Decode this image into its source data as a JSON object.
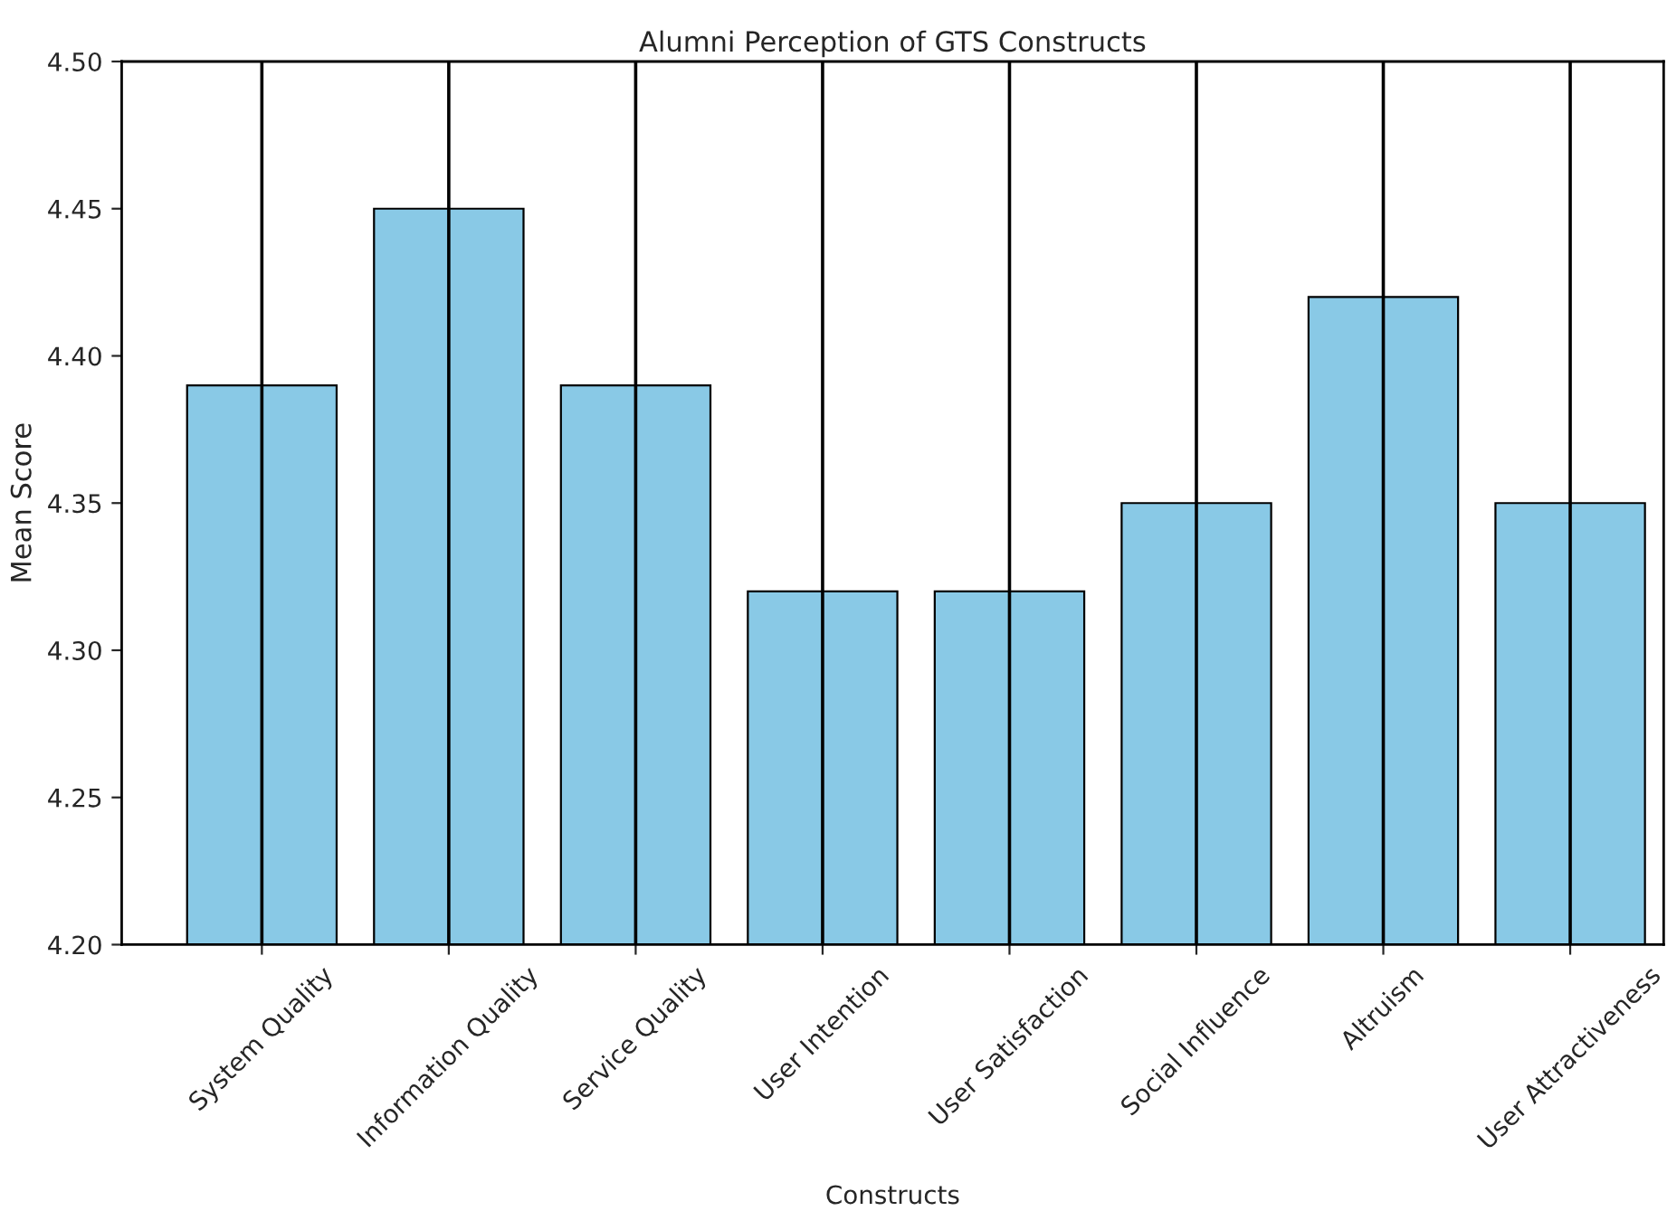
{
  "chart_data": {
    "type": "bar",
    "title": "Alumni Perception of GTS Constructs",
    "xlabel": "Constructs",
    "ylabel": "Mean Score",
    "categories": [
      "System Quality",
      "Information Quality",
      "Service Quality",
      "User Intention",
      "User Satisfaction",
      "Social Influence",
      "Altruism",
      "User Attractiveness"
    ],
    "values": [
      4.39,
      4.45,
      4.39,
      4.32,
      4.32,
      4.35,
      4.42,
      4.35
    ],
    "errors": [
      [
        4.2,
        4.5
      ],
      [
        4.2,
        4.5
      ],
      [
        4.2,
        4.5
      ],
      [
        4.2,
        4.5
      ],
      [
        4.2,
        4.5
      ],
      [
        4.2,
        4.5
      ],
      [
        4.2,
        4.5
      ],
      [
        4.2,
        4.5
      ]
    ],
    "color": "#89c9e6",
    "ylim": [
      4.2,
      4.5
    ],
    "yticks": [
      {
        "value": 4.2,
        "label": "4.20"
      },
      {
        "value": 4.25,
        "label": "4.25"
      },
      {
        "value": 4.3,
        "label": "4.30"
      },
      {
        "value": 4.35,
        "label": "4.35"
      },
      {
        "value": 4.4,
        "label": "4.40"
      },
      {
        "value": 4.45,
        "label": "4.45"
      },
      {
        "value": 4.5,
        "label": "4.50"
      }
    ],
    "grid": false
  }
}
